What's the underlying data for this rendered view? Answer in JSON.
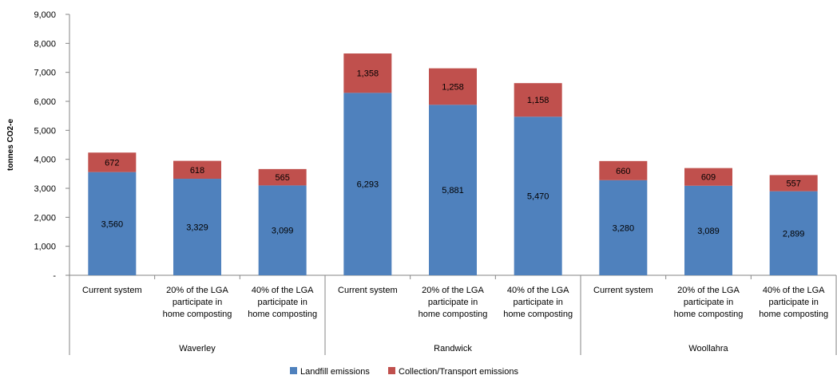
{
  "chart_data": {
    "type": "bar",
    "stacked": true,
    "ylabel": "tonnes CO2-e",
    "ylim": [
      0,
      9000
    ],
    "yticks": [
      {
        "value": 0,
        "label": "-"
      },
      {
        "value": 1000,
        "label": "1,000"
      },
      {
        "value": 2000,
        "label": "2,000"
      },
      {
        "value": 3000,
        "label": "3,000"
      },
      {
        "value": 4000,
        "label": "4,000"
      },
      {
        "value": 5000,
        "label": "5,000"
      },
      {
        "value": 6000,
        "label": "6,000"
      },
      {
        "value": 7000,
        "label": "7,000"
      },
      {
        "value": 8000,
        "label": "8,000"
      },
      {
        "value": 9000,
        "label": "9,000"
      }
    ],
    "grid": false,
    "legend_position": "bottom",
    "groups": [
      {
        "name": "Waverley",
        "categories": [
          [
            "Current system"
          ],
          [
            "20% of the LGA",
            "participate in",
            "home composting"
          ],
          [
            "40% of the LGA",
            "participate in",
            "home composting"
          ]
        ]
      },
      {
        "name": "Randwick",
        "categories": [
          [
            "Current system"
          ],
          [
            "20% of the LGA",
            "participate in",
            "home composting"
          ],
          [
            "40% of the LGA",
            "participate in",
            "home composting"
          ]
        ]
      },
      {
        "name": "Woollahra",
        "categories": [
          [
            "Current system"
          ],
          [
            "20% of the LGA",
            "participate in",
            "home composting"
          ],
          [
            "40% of the LGA",
            "participate in",
            "home composting"
          ]
        ]
      }
    ],
    "series": [
      {
        "name": "Landfill emissions",
        "color": "#4F81BD",
        "values": [
          3560,
          3329,
          3099,
          6293,
          5881,
          5470,
          3280,
          3089,
          2899
        ],
        "labels": [
          "3,560",
          "3,329",
          "3,099",
          "6,293",
          "5,881",
          "5,470",
          "3,280",
          "3,089",
          "2,899"
        ]
      },
      {
        "name": "Collection/Transport emissions",
        "color": "#C0504D",
        "values": [
          672,
          618,
          565,
          1358,
          1258,
          1158,
          660,
          609,
          557
        ],
        "labels": [
          "672",
          "618",
          "565",
          "1,358",
          "1,258",
          "1,158",
          "660",
          "609",
          "557"
        ]
      }
    ]
  }
}
